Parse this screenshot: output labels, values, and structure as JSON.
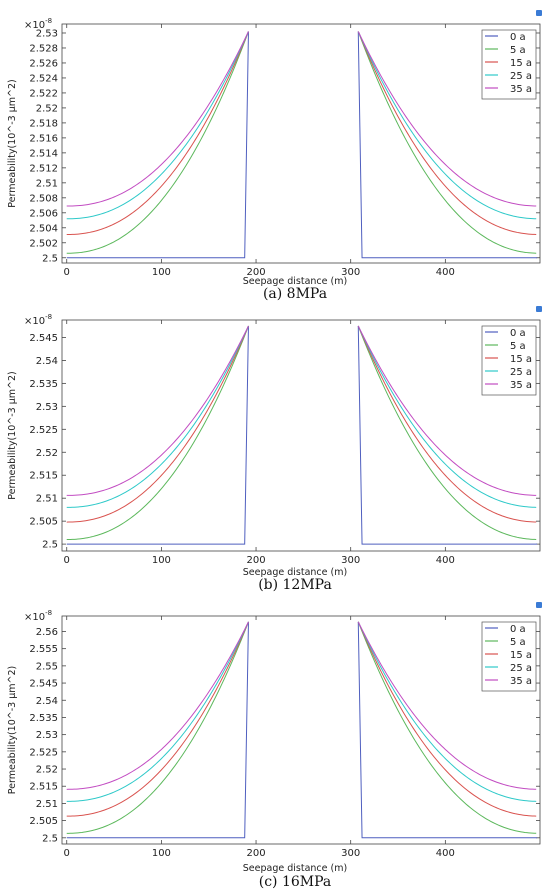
{
  "chart_data": [
    {
      "type": "line",
      "caption": "(a) 8MPa",
      "xlabel": "Seepage distance (m)",
      "ylabel": "Permeability(10^-3 μm^2)",
      "exponent": "×10",
      "exponent_power": "-8",
      "xlim": [
        -5,
        500
      ],
      "ylim": [
        2.4993,
        2.5312
      ],
      "xticks": [
        "0",
        "100",
        "200",
        "300",
        "400"
      ],
      "yticks": [
        "2.5",
        "2.502",
        "2.504",
        "2.506",
        "2.508",
        "2.51",
        "2.512",
        "2.514",
        "2.516",
        "2.518",
        "2.52",
        "2.522",
        "2.524",
        "2.526",
        "2.528",
        "2.53"
      ],
      "legend": "top-right",
      "peak": 2.5302,
      "series": [
        {
          "name": "0 a",
          "color": "#4f5fbf",
          "end": 2.5
        },
        {
          "name": "5 a",
          "color": "#5cb85c",
          "end": 2.5006
        },
        {
          "name": "15 a",
          "color": "#d9534f",
          "end": 2.5031
        },
        {
          "name": "25 a",
          "color": "#2ec9c9",
          "end": 2.5052
        },
        {
          "name": "35 a",
          "color": "#c24cc2",
          "end": 2.5069
        }
      ]
    },
    {
      "type": "line",
      "caption": "(b) 12MPa",
      "xlabel": "Seepage distance (m)",
      "ylabel": "Permeability(10^-3 μm^2)",
      "exponent": "×10",
      "exponent_power": "-8",
      "xlim": [
        -5,
        500
      ],
      "ylim": [
        2.4985,
        2.5488
      ],
      "xticks": [
        "0",
        "100",
        "200",
        "300",
        "400"
      ],
      "yticks": [
        "2.5",
        "2.505",
        "2.51",
        "2.515",
        "2.52",
        "2.525",
        "2.53",
        "2.535",
        "2.54",
        "2.545"
      ],
      "legend": "top-right",
      "peak": 2.5475,
      "series": [
        {
          "name": "0 a",
          "color": "#4f5fbf",
          "end": 2.5
        },
        {
          "name": "5 a",
          "color": "#5cb85c",
          "end": 2.501
        },
        {
          "name": "15 a",
          "color": "#d9534f",
          "end": 2.5048
        },
        {
          "name": "25 a",
          "color": "#2ec9c9",
          "end": 2.508
        },
        {
          "name": "35 a",
          "color": "#c24cc2",
          "end": 2.5106
        }
      ]
    },
    {
      "type": "line",
      "caption": "(c) 16MPa",
      "xlabel": "Seepage distance (m)",
      "ylabel": "Permeability(10^-3 μm^2)",
      "exponent": "×10",
      "exponent_power": "-8",
      "xlim": [
        -5,
        500
      ],
      "ylim": [
        2.4982,
        2.5645
      ],
      "xticks": [
        "0",
        "100",
        "200",
        "300",
        "400"
      ],
      "yticks": [
        "2.5",
        "2.505",
        "2.51",
        "2.515",
        "2.52",
        "2.525",
        "2.53",
        "2.535",
        "2.54",
        "2.545",
        "2.55",
        "2.555",
        "2.56"
      ],
      "legend": "top-right",
      "peak": 2.5628,
      "series": [
        {
          "name": "0 a",
          "color": "#4f5fbf",
          "end": 2.5
        },
        {
          "name": "5 a",
          "color": "#5cb85c",
          "end": 2.5013
        },
        {
          "name": "15 a",
          "color": "#d9534f",
          "end": 2.5063
        },
        {
          "name": "25 a",
          "color": "#2ec9c9",
          "end": 2.5106
        },
        {
          "name": "35 a",
          "color": "#c24cc2",
          "end": 2.5141
        }
      ]
    }
  ]
}
